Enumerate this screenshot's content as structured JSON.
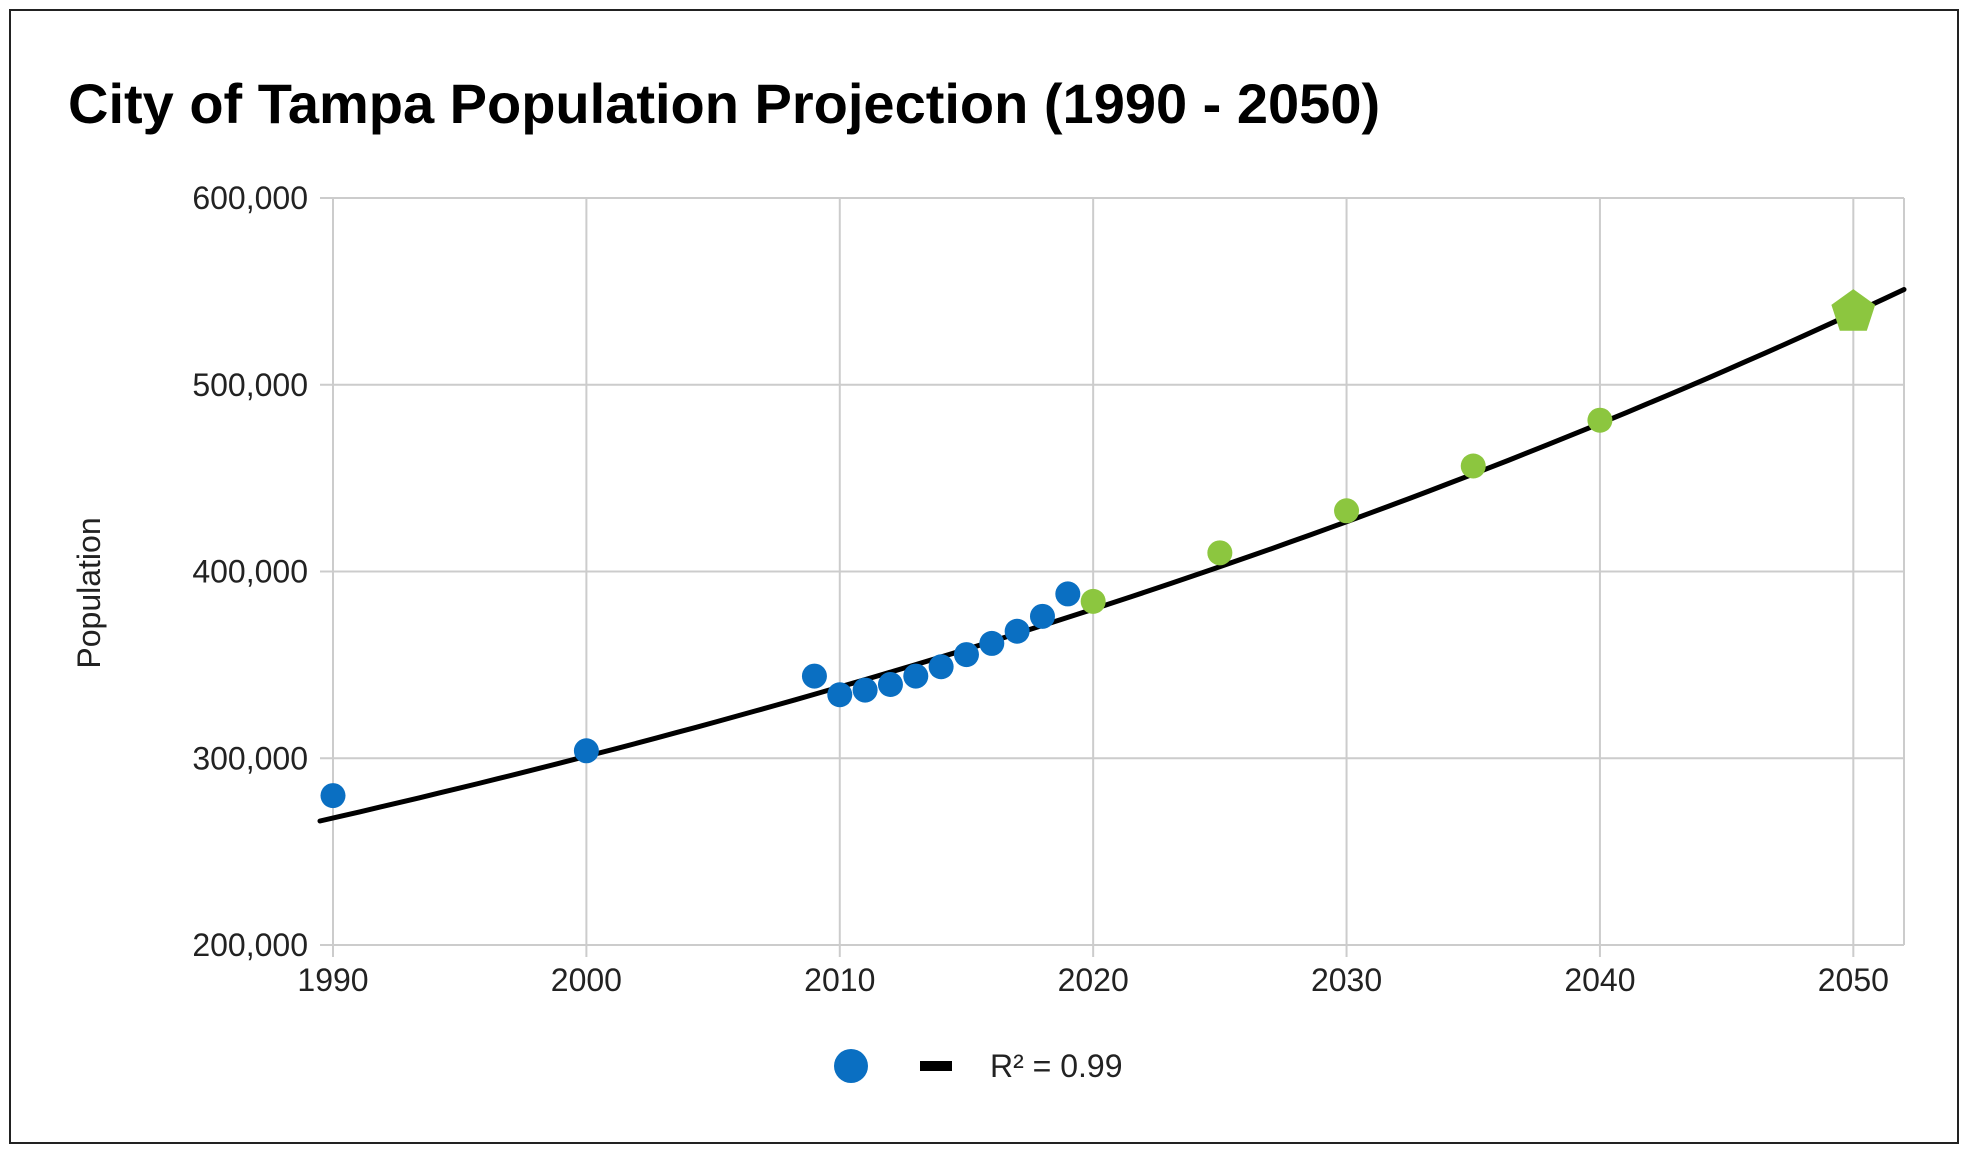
{
  "chart_data": {
    "type": "scatter",
    "title": "City of Tampa Population Projection (1990 - 2050)",
    "xlabel": "",
    "ylabel": "Population",
    "xlim": [
      1990,
      2052
    ],
    "ylim": [
      200000,
      600000
    ],
    "x_ticks": [
      1990,
      2000,
      2010,
      2020,
      2030,
      2040,
      2050
    ],
    "y_ticks": [
      200000,
      300000,
      400000,
      500000,
      600000
    ],
    "x_tick_labels": [
      "1990",
      "2000",
      "2010",
      "2020",
      "2030",
      "2040",
      "2050"
    ],
    "y_tick_labels": [
      "200,000",
      "300,000",
      "400,000",
      "500,000",
      "600,000"
    ],
    "grid": true,
    "colors": {
      "actual": "#0a6fc2",
      "projected": "#8cc63f",
      "trendline": "#000000",
      "grid": "#cccccc"
    },
    "series": [
      {
        "marker": "circle",
        "color": "#0a6fc2",
        "x": [
          1990,
          2000,
          2009,
          2010,
          2011,
          2012,
          2013,
          2014,
          2015,
          2016,
          2017,
          2018,
          2019
        ],
        "y": [
          280000,
          304000,
          344000,
          334000,
          336500,
          339500,
          344000,
          349000,
          355500,
          361500,
          368000,
          376000,
          388000
        ]
      },
      {
        "marker": "circle",
        "color": "#8cc63f",
        "x": [
          2020,
          2025,
          2030,
          2035,
          2040
        ],
        "y": [
          384000,
          410000,
          432500,
          456500,
          481000
        ]
      },
      {
        "marker": "pentagon",
        "color": "#8cc63f",
        "x": [
          2050
        ],
        "y": [
          540000
        ]
      }
    ],
    "trendline": {
      "type": "exponential",
      "color": "#000000",
      "x": [
        1990,
        2000,
        2010,
        2020,
        2030,
        2040,
        2050,
        2052
      ],
      "y": [
        268000,
        302000,
        338000,
        380000,
        428000,
        482000,
        540000,
        551000
      ],
      "label": "R² = 0.99"
    },
    "legend": {
      "placement": "bottom-center",
      "entries": [
        {
          "marker": "circle",
          "color": "#0a6fc2",
          "label": ""
        },
        {
          "marker": "line",
          "color": "#000000",
          "label": "R² = 0.99"
        }
      ]
    }
  }
}
